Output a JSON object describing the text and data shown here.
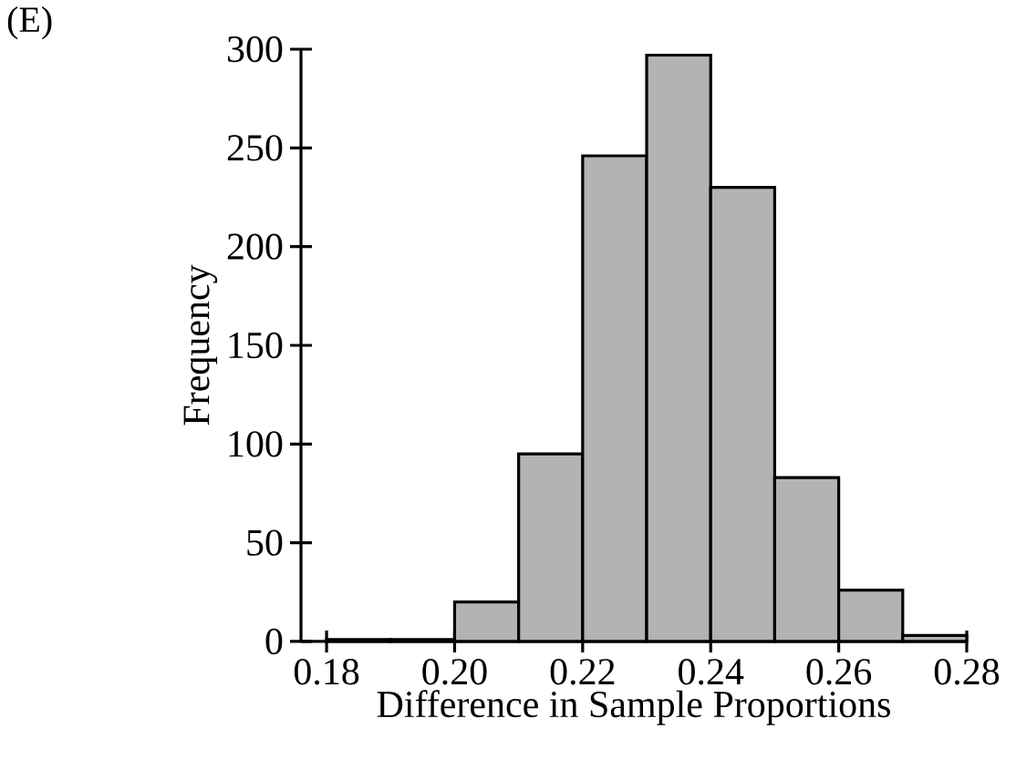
{
  "chart_data": {
    "type": "histogram",
    "xlabel": "Difference in Sample Proportions",
    "ylabel": "Frequency",
    "annotations": [
      "(E)"
    ],
    "bins": [
      0.18,
      0.19,
      0.2,
      0.21,
      0.22,
      0.23,
      0.24,
      0.25,
      0.26,
      0.27,
      0.28
    ],
    "values": [
      1,
      1,
      20,
      95,
      246,
      297,
      230,
      83,
      26,
      3
    ],
    "color": "#b3b3b3",
    "xlim": [
      0.176,
      0.28
    ],
    "ylim": [
      0,
      300
    ],
    "xticks": [
      {
        "value": 0.18,
        "label": "0.18"
      },
      {
        "value": 0.2,
        "label": "0.20"
      },
      {
        "value": 0.22,
        "label": "0.22"
      },
      {
        "value": 0.24,
        "label": "0.24"
      },
      {
        "value": 0.26,
        "label": "0.26"
      },
      {
        "value": 0.28,
        "label": "0.28"
      }
    ],
    "yticks": [
      0,
      50,
      100,
      150,
      200,
      250,
      300
    ]
  }
}
